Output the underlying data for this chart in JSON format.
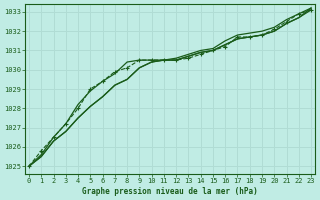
{
  "title": "Graphe pression niveau de la mer (hPa)",
  "bg_color": "#c0ece4",
  "grid_color": "#b0dcd4",
  "line_color": "#1a5c1a",
  "x_ticks": [
    0,
    1,
    2,
    3,
    4,
    5,
    6,
    7,
    8,
    9,
    10,
    11,
    12,
    13,
    14,
    15,
    16,
    17,
    18,
    19,
    20,
    21,
    22,
    23
  ],
  "ylim": [
    1024.6,
    1033.4
  ],
  "yticks": [
    1025,
    1026,
    1027,
    1028,
    1029,
    1030,
    1031,
    1032,
    1033
  ],
  "series": [
    {
      "data": [
        1025.0,
        1025.5,
        1026.3,
        1026.8,
        1027.5,
        1028.1,
        1028.6,
        1029.2,
        1029.5,
        1030.1,
        1030.4,
        1030.5,
        1030.5,
        1030.7,
        1030.9,
        1031.0,
        1031.3,
        1031.6,
        1031.7,
        1031.8,
        1032.0,
        1032.4,
        1032.7,
        1033.1
      ],
      "style": "solid",
      "marker": null,
      "lw": 0.9
    },
    {
      "data": [
        1025.0,
        1025.5,
        1026.3,
        1026.8,
        1027.5,
        1028.1,
        1028.6,
        1029.2,
        1029.5,
        1030.1,
        1030.4,
        1030.5,
        1030.5,
        1030.7,
        1030.9,
        1031.0,
        1031.3,
        1031.6,
        1031.7,
        1031.8,
        1032.0,
        1032.4,
        1032.7,
        1033.2
      ],
      "style": "solid",
      "marker": null,
      "lw": 0.9
    },
    {
      "data": [
        1025.0,
        1025.6,
        1026.5,
        1027.2,
        1028.2,
        1028.9,
        1029.4,
        1029.8,
        1030.4,
        1030.5,
        1030.5,
        1030.5,
        1030.6,
        1030.8,
        1031.0,
        1031.1,
        1031.5,
        1031.8,
        1031.9,
        1032.0,
        1032.2,
        1032.6,
        1032.9,
        1033.2
      ],
      "style": "solid",
      "marker": null,
      "lw": 0.9
    },
    {
      "data": [
        1025.0,
        1025.8,
        1026.5,
        1027.2,
        1028.0,
        1029.0,
        1029.4,
        1029.9,
        1030.1,
        1030.5,
        1030.5,
        1030.5,
        1030.5,
        1030.6,
        1030.8,
        1031.0,
        1031.2,
        1031.7,
        1031.7,
        1031.8,
        1032.1,
        1032.5,
        1032.9,
        1033.1
      ],
      "style": "dashed",
      "marker": "P",
      "lw": 0.8
    }
  ]
}
